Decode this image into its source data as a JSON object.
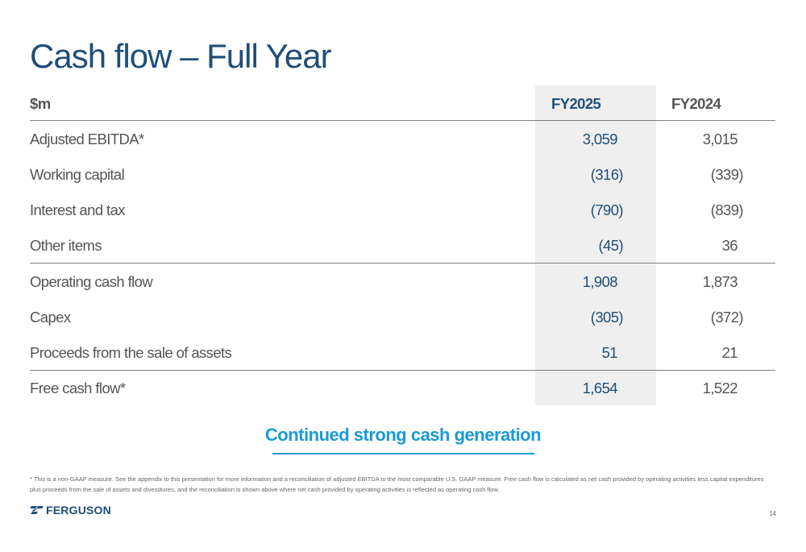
{
  "title": "Cash flow – Full Year",
  "table": {
    "unit_label": "$m",
    "columns": [
      "FY2025",
      "FY2024"
    ],
    "rows": [
      {
        "label": "Adjusted EBITDA*",
        "fy2025": "3,059",
        "fy2024": "3,015"
      },
      {
        "label": "Working capital",
        "fy2025": "(316)",
        "fy2024": "(339)"
      },
      {
        "label": "Interest and tax",
        "fy2025": "(790)",
        "fy2024": "(839)"
      },
      {
        "label": "Other items",
        "fy2025": "(45)",
        "fy2024": "36"
      },
      {
        "label": "Operating cash flow",
        "fy2025": "1,908",
        "fy2024": "1,873"
      },
      {
        "label": "Capex",
        "fy2025": "(305)",
        "fy2024": "(372)"
      },
      {
        "label": "Proceeds from the sale of assets",
        "fy2025": "51",
        "fy2024": "21"
      },
      {
        "label": "Free cash flow*",
        "fy2025": "1,654",
        "fy2024": "1,522"
      }
    ]
  },
  "tagline": "Continued strong cash generation",
  "footnote": "* This is a non-GAAP measure. See the appendix to this presentation for more information and a reconciliation of adjusted EBITDA to the most comparable U.S. GAAP measure. Free cash flow is calculated as net cash provided by operating activities less capital expenditures plus proceeds from the sale of assets and divestitures, and the reconciliation is shown above where net cash provided by operating activities is reflected as operating cash flow.",
  "logo": {
    "text": "FERGUSON",
    "icon": "ferguson-logo-icon"
  },
  "page_number": "14",
  "colors": {
    "title": "#1f4e79",
    "accent": "#1a9ad6",
    "shade": "#efefef"
  }
}
